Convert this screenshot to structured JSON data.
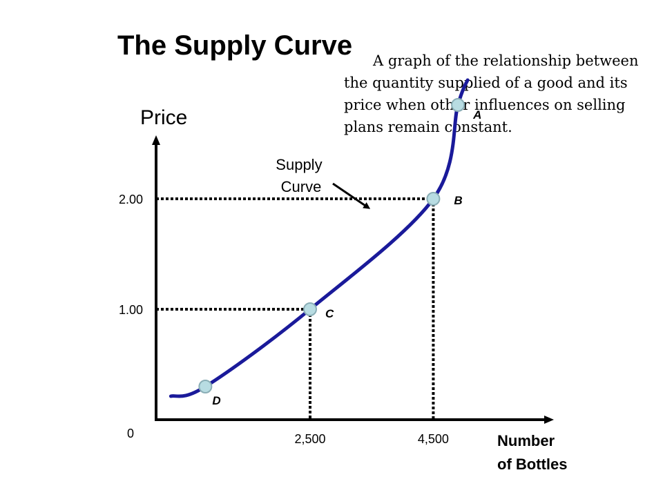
{
  "title": "The Supply Curve",
  "description": "A graph of the relationship between the quantity supplied of a good and its price when other influences on selling plans remain constant.",
  "chart_data": {
    "type": "line",
    "ylabel": "Price",
    "xlabel_lines": [
      "Number",
      "of Bottles"
    ],
    "origin_label": "0",
    "curve_label_lines": [
      "Supply",
      "Curve"
    ],
    "x_ticks": [
      {
        "value": 2500,
        "label": "2,500"
      },
      {
        "value": 4500,
        "label": "4,500"
      }
    ],
    "y_ticks": [
      {
        "value": 1.0,
        "label": "1.00"
      },
      {
        "value": 2.0,
        "label": "2.00"
      }
    ],
    "series": [
      {
        "points": [
          {
            "label": "D",
            "x": 800,
            "y": 0.3
          },
          {
            "label": "C",
            "x": 2500,
            "y": 1.0
          },
          {
            "label": "B",
            "x": 4500,
            "y": 2.0
          },
          {
            "label": "A",
            "x": 4900,
            "y": 2.85
          }
        ]
      }
    ],
    "guides": [
      {
        "x": 2500,
        "y": 1.0
      },
      {
        "x": 4500,
        "y": 2.0
      }
    ],
    "colors": {
      "curve": "#1a1a9a",
      "point_fill": "#b8dce2",
      "point_stroke": "#8aaeb6",
      "axis": "#000000"
    }
  }
}
